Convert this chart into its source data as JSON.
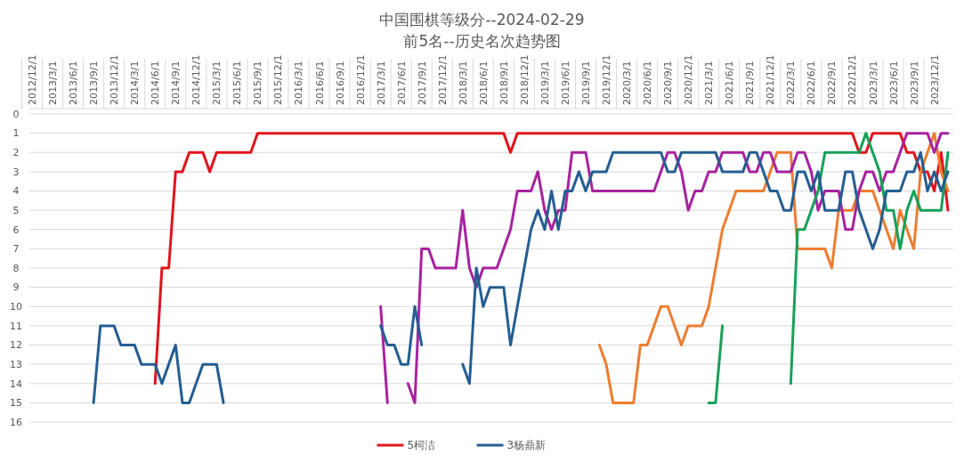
{
  "chart_data": {
    "type": "line",
    "title": "中国围棋等级分--2024-02-29",
    "subtitle": "前5名--历史名次趋势图",
    "categories": [
      "2012/12/1",
      null,
      null,
      "2013/3/1",
      null,
      null,
      "2013/6/1",
      null,
      null,
      "2013/9/1",
      null,
      null,
      "2013/12/1",
      null,
      null,
      "2014/3/1",
      null,
      null,
      "2014/6/1",
      null,
      null,
      "2014/9/1",
      null,
      null,
      "2014/12/1",
      null,
      null,
      "2015/3/1",
      null,
      null,
      "2015/6/1",
      null,
      null,
      "2015/9/1",
      null,
      null,
      "2015/12/1",
      null,
      null,
      "2016/3/1",
      null,
      null,
      "2016/6/1",
      null,
      null,
      "2016/9/1",
      null,
      null,
      "2016/12/1",
      null,
      null,
      "2017/3/1",
      null,
      null,
      "2017/6/1",
      null,
      null,
      "2017/9/1",
      null,
      null,
      "2017/12/1",
      null,
      null,
      "2018/3/1",
      null,
      null,
      "2018/6/1",
      null,
      null,
      "2018/9/1",
      null,
      null,
      "2018/12/1",
      null,
      null,
      "2019/3/1",
      null,
      null,
      "2019/6/1",
      null,
      null,
      "2019/9/1",
      null,
      null,
      "2019/12/1",
      null,
      null,
      "2020/3/1",
      null,
      null,
      "2020/6/1",
      null,
      null,
      "2020/9/1",
      null,
      null,
      "2020/12/1",
      null,
      null,
      "2021/3/1",
      null,
      null,
      "2021/6/1",
      null,
      null,
      "2021/9/1",
      null,
      null,
      "2021/12/1",
      null,
      null,
      "2022/3/1",
      null,
      null,
      "2022/6/1",
      null,
      null,
      "2022/9/1",
      null,
      null,
      "2022/12/1",
      null,
      null,
      "2023/3/1",
      null,
      null,
      "2023/6/1",
      null,
      null,
      "2023/9/1",
      null,
      null,
      "2023/12/1",
      null,
      null
    ],
    "series": [
      {
        "name": "5柯洁",
        "color": "#e0141b",
        "values": [
          null,
          null,
          null,
          null,
          null,
          null,
          null,
          null,
          null,
          null,
          null,
          null,
          null,
          null,
          null,
          null,
          null,
          null,
          14,
          8,
          8,
          3,
          3,
          2,
          2,
          2,
          3,
          2,
          2,
          2,
          2,
          2,
          2,
          1,
          1,
          1,
          1,
          1,
          1,
          1,
          1,
          1,
          1,
          1,
          1,
          1,
          1,
          1,
          1,
          1,
          1,
          1,
          1,
          1,
          1,
          1,
          1,
          1,
          1,
          1,
          1,
          1,
          1,
          1,
          1,
          1,
          1,
          1,
          1,
          1,
          2,
          1,
          1,
          1,
          1,
          1,
          1,
          1,
          1,
          1,
          1,
          1,
          1,
          1,
          1,
          1,
          1,
          1,
          1,
          1,
          1,
          1,
          1,
          1,
          1,
          1,
          1,
          1,
          1,
          1,
          1,
          1,
          1,
          1,
          1,
          1,
          1,
          1,
          1,
          1,
          1,
          1,
          1,
          1,
          1,
          1,
          1,
          1,
          1,
          1,
          1,
          2,
          2,
          1,
          1,
          1,
          1,
          1,
          2,
          2,
          3,
          3,
          4,
          2,
          5
        ]
      },
      {
        "color": "#ed7d31",
        "values": [
          null,
          null,
          null,
          null,
          null,
          null,
          null,
          null,
          null,
          null,
          null,
          null,
          null,
          null,
          null,
          null,
          null,
          null,
          null,
          null,
          null,
          null,
          null,
          null,
          null,
          null,
          null,
          null,
          null,
          null,
          null,
          null,
          null,
          null,
          null,
          null,
          null,
          null,
          null,
          null,
          null,
          null,
          null,
          null,
          null,
          null,
          null,
          null,
          null,
          null,
          null,
          null,
          null,
          null,
          null,
          null,
          null,
          null,
          null,
          null,
          null,
          null,
          null,
          null,
          null,
          null,
          null,
          null,
          null,
          null,
          null,
          null,
          null,
          null,
          null,
          null,
          null,
          null,
          null,
          null,
          null,
          null,
          null,
          12,
          13,
          15,
          15,
          15,
          15,
          12,
          12,
          11,
          10,
          10,
          11,
          12,
          11,
          11,
          11,
          10,
          8,
          6,
          5,
          4,
          4,
          4,
          4,
          4,
          3,
          2,
          2,
          2,
          7,
          7,
          7,
          7,
          7,
          8,
          5,
          5,
          5,
          4,
          4,
          4,
          5,
          6,
          7,
          5,
          6,
          7,
          3,
          2,
          1,
          3,
          4
        ]
      },
      {
        "color": "#a8239f",
        "values": [
          null,
          null,
          null,
          null,
          null,
          null,
          null,
          null,
          null,
          null,
          null,
          null,
          null,
          null,
          null,
          null,
          null,
          null,
          null,
          null,
          null,
          null,
          null,
          null,
          null,
          null,
          null,
          null,
          null,
          null,
          null,
          null,
          null,
          null,
          null,
          null,
          null,
          null,
          null,
          null,
          null,
          null,
          null,
          null,
          null,
          null,
          null,
          null,
          null,
          null,
          null,
          10,
          15,
          null,
          null,
          14,
          15,
          7,
          7,
          8,
          8,
          8,
          8,
          5,
          8,
          9,
          8,
          8,
          8,
          7,
          6,
          4,
          4,
          4,
          3,
          5,
          6,
          5,
          5,
          2,
          2,
          2,
          4,
          4,
          4,
          4,
          4,
          4,
          4,
          4,
          4,
          4,
          3,
          2,
          2,
          3,
          5,
          4,
          4,
          3,
          3,
          2,
          2,
          2,
          2,
          3,
          3,
          2,
          2,
          3,
          3,
          3,
          2,
          2,
          3,
          5,
          4,
          4,
          4,
          6,
          6,
          4,
          3,
          3,
          4,
          3,
          3,
          2,
          1,
          1,
          1,
          1,
          2,
          1,
          1
        ]
      },
      {
        "color": "#17a05a",
        "values": [
          null,
          null,
          null,
          null,
          null,
          null,
          null,
          null,
          null,
          null,
          null,
          null,
          null,
          null,
          null,
          null,
          null,
          null,
          null,
          null,
          null,
          null,
          null,
          null,
          null,
          null,
          null,
          null,
          null,
          null,
          null,
          null,
          null,
          null,
          null,
          null,
          null,
          null,
          null,
          null,
          null,
          null,
          null,
          null,
          null,
          null,
          null,
          null,
          null,
          null,
          null,
          null,
          null,
          null,
          null,
          null,
          null,
          null,
          null,
          null,
          null,
          null,
          null,
          null,
          null,
          null,
          null,
          null,
          null,
          null,
          null,
          null,
          null,
          null,
          null,
          null,
          null,
          null,
          null,
          null,
          null,
          null,
          null,
          null,
          null,
          null,
          null,
          null,
          null,
          null,
          null,
          null,
          null,
          null,
          null,
          null,
          null,
          null,
          null,
          15,
          15,
          11,
          null,
          null,
          null,
          null,
          null,
          null,
          null,
          null,
          null,
          14,
          6,
          6,
          5,
          4,
          2,
          2,
          2,
          2,
          2,
          2,
          1,
          2,
          3,
          5,
          5,
          7,
          5,
          4,
          5,
          5,
          5,
          5,
          2
        ]
      },
      {
        "name": "3杨鼎新",
        "color": "#255e91",
        "values": [
          null,
          null,
          null,
          null,
          null,
          null,
          null,
          null,
          null,
          15,
          11,
          11,
          11,
          12,
          12,
          12,
          13,
          13,
          13,
          14,
          13,
          12,
          15,
          15,
          14,
          13,
          13,
          13,
          15,
          null,
          null,
          null,
          null,
          null,
          null,
          null,
          null,
          null,
          null,
          null,
          null,
          null,
          null,
          null,
          null,
          null,
          null,
          null,
          null,
          null,
          null,
          11,
          12,
          12,
          13,
          13,
          10,
          12,
          null,
          null,
          null,
          null,
          null,
          13,
          14,
          8,
          10,
          9,
          9,
          9,
          12,
          10,
          8,
          6,
          5,
          6,
          4,
          6,
          4,
          4,
          3,
          4,
          3,
          3,
          3,
          2,
          2,
          2,
          2,
          2,
          2,
          2,
          2,
          3,
          3,
          2,
          2,
          2,
          2,
          2,
          2,
          3,
          3,
          3,
          3,
          2,
          2,
          3,
          4,
          4,
          5,
          5,
          3,
          3,
          4,
          3,
          5,
          5,
          5,
          3,
          3,
          5,
          6,
          7,
          6,
          4,
          4,
          4,
          3,
          3,
          2,
          4,
          3,
          4,
          3
        ]
      }
    ],
    "ylim": [
      16,
      0
    ],
    "yticks": [
      0,
      1,
      2,
      3,
      4,
      5,
      6,
      7,
      8,
      9,
      10,
      11,
      12,
      13,
      14,
      15,
      16
    ],
    "grid": "y",
    "legend": "bottom"
  }
}
